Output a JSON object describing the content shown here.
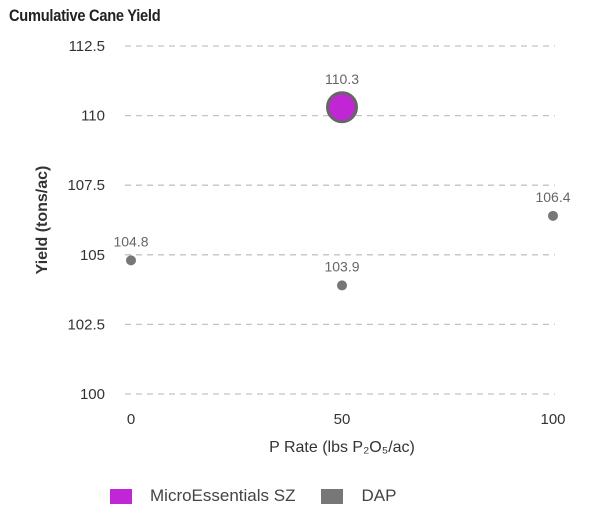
{
  "chart_data": {
    "type": "scatter",
    "title": "Cumulative Cane Yield",
    "xlabel": "P Rate (lbs P₂O₅/ac)",
    "ylabel": "Yield (tons/ac)",
    "x_ticks": [
      "0",
      "50",
      "100"
    ],
    "y_ticks": [
      "100",
      "102.5",
      "105",
      "107.5",
      "110",
      "112.5"
    ],
    "xlim": [
      0,
      100
    ],
    "ylim": [
      100,
      112.5
    ],
    "grid": "horizontal dashed",
    "legend_position": "bottom",
    "series": [
      {
        "name": "MicroEssentials SZ",
        "color": "#c026d3",
        "points": [
          {
            "x": 50,
            "y": 110.3,
            "label": "110.3"
          }
        ]
      },
      {
        "name": "DAP",
        "color": "#777777",
        "points": [
          {
            "x": 0,
            "y": 104.8,
            "label": "104.8"
          },
          {
            "x": 50,
            "y": 103.9,
            "label": "103.9"
          },
          {
            "x": 100,
            "y": 106.4,
            "label": "106.4"
          }
        ]
      }
    ]
  }
}
